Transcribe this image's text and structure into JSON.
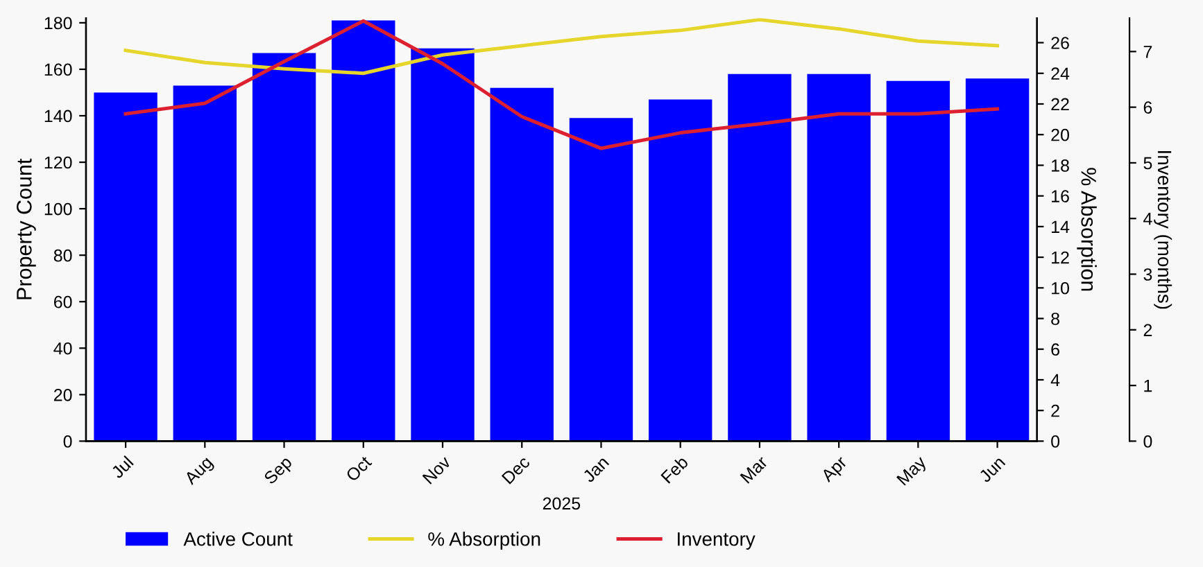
{
  "chart_data": {
    "type": "bar",
    "categories": [
      "Jul",
      "Aug",
      "Sep",
      "Oct",
      "Nov",
      "Dec",
      "Jan",
      "Feb",
      "Mar",
      "Apr",
      "May",
      "Jun"
    ],
    "xlabel": "2025",
    "ylabel": "Property Count",
    "y2label": "% Absorption",
    "y3label": "Inventory (months)",
    "ylim": [
      0,
      182
    ],
    "yticks": [
      0,
      20,
      40,
      60,
      80,
      100,
      120,
      140,
      160,
      180
    ],
    "y2lim": [
      0,
      27.6
    ],
    "y2ticks": [
      0,
      2,
      4,
      6,
      8,
      10,
      12,
      14,
      16,
      18,
      20,
      22,
      24,
      26
    ],
    "y3lim": [
      0,
      7.6
    ],
    "y3ticks": [
      0,
      1,
      2,
      3,
      4,
      5,
      6,
      7
    ],
    "series": [
      {
        "name": "Active Count",
        "color": "#0000ff",
        "values": [
          150,
          153,
          167,
          181,
          169,
          152,
          139,
          147,
          158,
          158,
          155,
          156
        ]
      },
      {
        "name": "% Absorption",
        "type": "line",
        "axis": "y2",
        "color": "#e6d52a",
        "values": [
          25.5,
          24.7,
          24.3,
          24.0,
          25.2,
          25.8,
          26.4,
          26.8,
          27.5,
          26.9,
          26.1,
          25.8
        ]
      },
      {
        "name": "Inventory",
        "type": "line",
        "axis": "y3",
        "color": "#dd2030",
        "values": [
          5.88,
          6.07,
          6.82,
          7.55,
          6.78,
          5.83,
          5.26,
          5.54,
          5.7,
          5.88,
          5.88,
          5.97
        ]
      }
    ],
    "grid": false,
    "legend": "bottom left",
    "marker": "none",
    "line_style": "solid"
  }
}
